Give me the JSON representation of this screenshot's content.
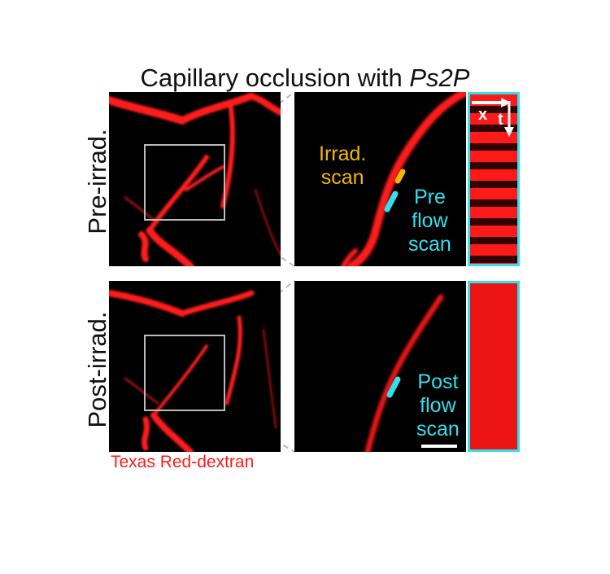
{
  "title": {
    "prefix": "Capillary occlusion with ",
    "italic": "Ps2P"
  },
  "rows": [
    {
      "label": "Pre-irrad.",
      "annotations": {
        "irrad": [
          "Irrad.",
          "scan"
        ],
        "flow": [
          "Pre",
          "flow",
          "scan"
        ]
      }
    },
    {
      "label": "Post-irrad.",
      "annotations": {
        "flow": [
          "Post",
          "flow",
          "scan"
        ]
      }
    }
  ],
  "linescan_axes": {
    "x": "x",
    "t": "t"
  },
  "dye_label": "Texas Red-dextran",
  "colors": {
    "vessel": "#ff1a1a",
    "irrad_scan": "#f2b705",
    "flow_scan": "#2fe0ee",
    "roi_box": "#bbbbbb"
  }
}
